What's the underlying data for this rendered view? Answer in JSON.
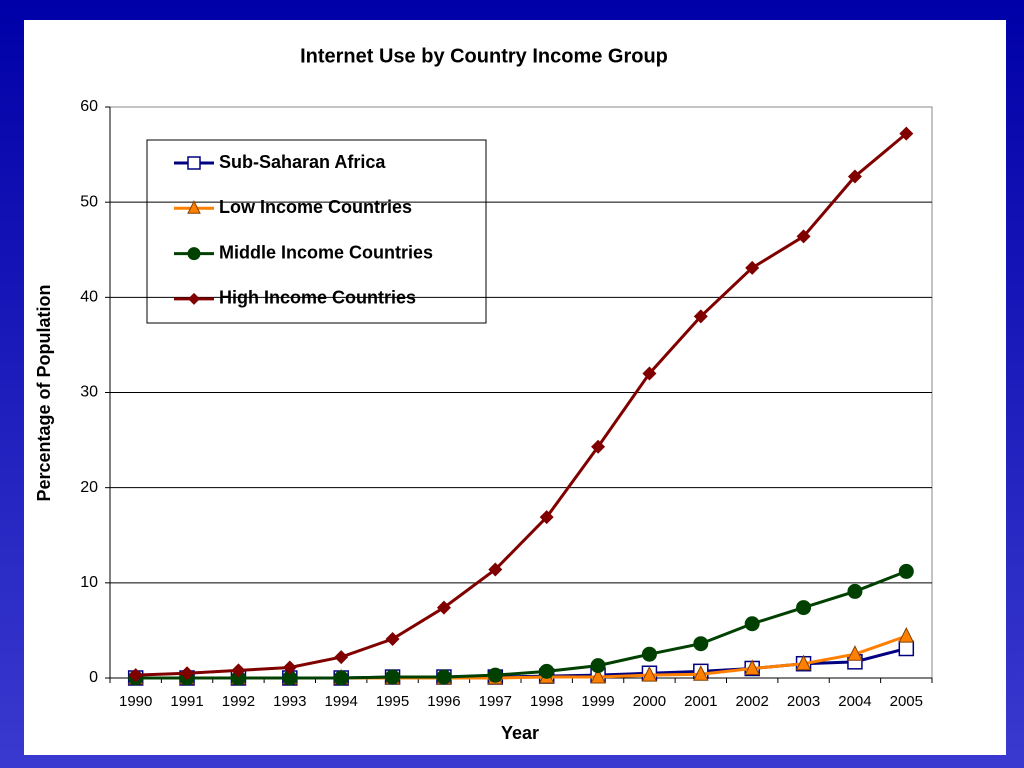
{
  "chart_data": {
    "type": "line",
    "title": "Internet Use by Country Income Group",
    "x_label": "Year",
    "y_label": "Percentage of Population",
    "categories": [
      "1990",
      "1991",
      "1992",
      "1993",
      "1994",
      "1995",
      "1996",
      "1997",
      "1998",
      "1999",
      "2000",
      "2001",
      "2002",
      "2003",
      "2004",
      "2005"
    ],
    "series": [
      {
        "name": "Sub-Saharan Africa",
        "color": "#000080",
        "marker": "square",
        "values": [
          0,
          0,
          0,
          0,
          0,
          0.1,
          0.1,
          0.1,
          0.2,
          0.3,
          0.5,
          0.7,
          1.0,
          1.5,
          1.7,
          3.1
        ]
      },
      {
        "name": "Low Income Countries",
        "color": "#ff8000",
        "marker": "triangle",
        "values": [
          0,
          0,
          0,
          0,
          0,
          0,
          0,
          0,
          0.1,
          0.1,
          0.3,
          0.4,
          1.0,
          1.5,
          2.5,
          4.4
        ]
      },
      {
        "name": "Middle Income Countries",
        "color": "#004000",
        "marker": "circle",
        "values": [
          0,
          0,
          0,
          0,
          0,
          0.1,
          0.1,
          0.3,
          0.7,
          1.3,
          2.5,
          3.6,
          5.7,
          7.4,
          9.1,
          11.2
        ]
      },
      {
        "name": "High Income Countries",
        "color": "#800000",
        "marker": "diamond",
        "values": [
          0.3,
          0.5,
          0.8,
          1.1,
          2.2,
          4.1,
          7.4,
          11.4,
          16.9,
          24.3,
          32.0,
          38.0,
          43.1,
          46.4,
          52.7,
          57.2
        ]
      }
    ],
    "ylim": [
      0,
      60
    ],
    "yticks": [
      0,
      10,
      20,
      30,
      40,
      50,
      60
    ],
    "grid": true,
    "legend": "top-left"
  }
}
